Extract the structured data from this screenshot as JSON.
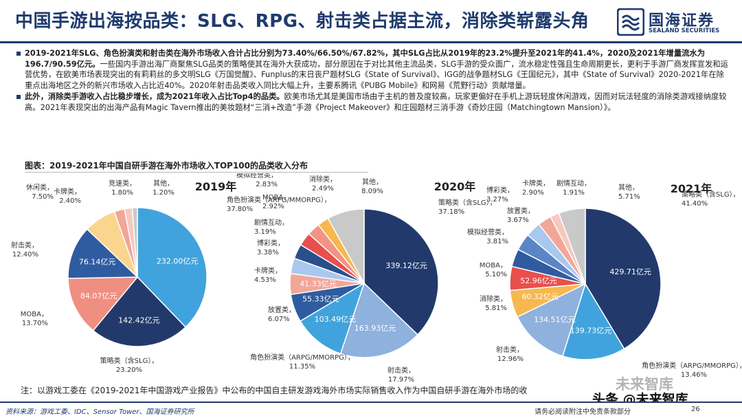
{
  "header": {
    "title": "中国手游出海按品类：SLG、RPG、射击类占据主流，消除类崭露头角",
    "logo_cn": "国海证券",
    "logo_en": "SEALAND SECURITIES"
  },
  "bullets": [
    {
      "bold": "2019-2021年SLG、角色扮演类和射击类在海外市场收入合计占比分别为73.40%/66.50%/67.82%，其中SLG占比从2019年的23.2%提升至2021年的41.4%，2020及2021年增量流水为196.7/90.59亿元。",
      "text": "一些国内手游出海厂商聚焦SLG品类的策略使其在海外大获成功，部分原因在于对比其他主流品类，SLG手游的受众面广，流水稳定性强且生命周期更长，更利于手游厂商发挥宣发和运营优势，在欧美市场表现突出的有莉莉丝的多文明SLG《万国觉醒》、Funplus的末日丧尸题材SLG《State of Survival》、IGG的战争题材SLG《王国纪元》，其中《State of Survival》2020-2021年在除重点出海地区之外的新兴市场收入占比近40%。2020年射击品类收入同比大幅上升，主要系腾讯《PUBG Mobile》和网易《荒野行动》贡献增量。"
    },
    {
      "bold": "此外，消除类手游收入占比稳步增长，成为2021年收入占比Top4的品类。",
      "text": "欧美市场尤其是美国市场由于主机的普及度较高，玩家更偏好在手机上游玩轻度休闲游戏，因而对玩法轻度的消除类游戏接纳度较高。2021年表现突出的出海产品有Magic Tavern推出的美妆题材“三消+改造”手游《Project Makeover》和庄园题材三消手游《奇妙庄园（Matchingtown Mansion）》。"
    }
  ],
  "figure_title": "图表：2019-2021年中国自研手游在海外市场收入TOP100的品类收入分布",
  "chart_data": [
    {
      "type": "pie",
      "title": "2019年",
      "slices": [
        {
          "name": "角色扮演类（ARPG/MMORPG）",
          "share": 37.8,
          "share_label": "37.80%",
          "value_label": "232.00亿元",
          "color": "#41a3dd"
        },
        {
          "name": "策略类（含SLG）",
          "share": 23.2,
          "share_label": "23.20%",
          "value_label": "142.42亿元",
          "color": "#223a6b"
        },
        {
          "name": "MOBA",
          "share": 13.7,
          "share_label": "13.70%",
          "value_label": "84.07亿元",
          "color": "#ef8f82"
        },
        {
          "name": "射击类",
          "share": 12.4,
          "share_label": "12.40%",
          "value_label": "76.14亿元",
          "color": "#2f5ca0"
        },
        {
          "name": "休闲类",
          "share": 7.5,
          "share_label": "7.50%",
          "color": "#fbd58e"
        },
        {
          "name": "卡牌类",
          "share": 2.4,
          "share_label": "2.40%",
          "color": "#f3a698"
        },
        {
          "name": "竞速类",
          "share": 1.8,
          "share_label": "1.80%",
          "color": "#f5c9bf"
        },
        {
          "name": "其他",
          "share": 1.2,
          "share_label": "1.20%",
          "color": "#c9c9c9"
        }
      ]
    },
    {
      "type": "pie",
      "title": "2020年",
      "slices": [
        {
          "name": "策略类（含SLG）",
          "share": 37.18,
          "share_label": "37.18%",
          "value_label": "339.12亿元",
          "color": "#223a6b"
        },
        {
          "name": "射击类",
          "share": 17.97,
          "share_label": "17.97%",
          "value_label": "163.93亿元",
          "color": "#8fb1de"
        },
        {
          "name": "角色扮演类（ARPG/MMORPG）",
          "share": 11.35,
          "share_label": "11.35%",
          "value_label": "103.49亿元",
          "color": "#41a3dd"
        },
        {
          "name": "放置类",
          "share": 6.07,
          "share_label": "6.07%",
          "value_label": "55.33亿元",
          "color": "#2f5ca0"
        },
        {
          "name": "卡牌类",
          "share": 4.53,
          "share_label": "4.53%",
          "value_label": "41.33亿元",
          "color": "#f3a698"
        },
        {
          "name": "博彩类",
          "share": 3.38,
          "share_label": "3.38%",
          "color": "#a9c8ef"
        },
        {
          "name": "剧情互动",
          "share": 3.19,
          "share_label": "3.19%",
          "color": "#2a4f8c"
        },
        {
          "name": "MOBA",
          "share": 2.92,
          "share_label": "2.92%",
          "color": "#e8504e"
        },
        {
          "name": "模拟经营类",
          "share": 2.83,
          "share_label": "2.83%",
          "color": "#f19483"
        },
        {
          "name": "消除类",
          "share": 2.49,
          "share_label": "2.49%",
          "color": "#f7b84f"
        },
        {
          "name": "其他",
          "share": 8.09,
          "share_label": "8.09%",
          "color": "#c9c9c9"
        }
      ]
    },
    {
      "type": "pie",
      "title": "2021年",
      "slices": [
        {
          "name": "策略类（含SLG）",
          "share": 41.4,
          "share_label": "41.40%",
          "value_label": "429.71亿元",
          "color": "#223a6b"
        },
        {
          "name": "角色扮演类（ARPG/MMORPG）",
          "share": 13.46,
          "share_label": "13.46%",
          "value_label": "139.73亿元",
          "color": "#41a3dd"
        },
        {
          "name": "射击类",
          "share": 12.96,
          "share_label": "12.96%",
          "value_label": "134.51亿元",
          "color": "#8fb1de"
        },
        {
          "name": "消除类",
          "share": 5.81,
          "share_label": "5.81%",
          "value_label": "60.32亿元",
          "color": "#f7b84f"
        },
        {
          "name": "MOBA",
          "share": 5.1,
          "share_label": "5.10%",
          "value_label": "52.96亿元",
          "color": "#e8504e"
        },
        {
          "name": "模拟经营类",
          "share": 3.81,
          "share_label": "3.81%",
          "color": "#2f5ca0"
        },
        {
          "name": "放置类",
          "share": 3.67,
          "share_label": "3.67%",
          "color": "#5b86c5"
        },
        {
          "name": "博彩类",
          "share": 3.27,
          "share_label": "3.27%",
          "color": "#a9c8ef"
        },
        {
          "name": "卡牌类",
          "share": 2.9,
          "share_label": "2.90%",
          "color": "#f3a698"
        },
        {
          "name": "剧情互动",
          "share": 1.91,
          "share_label": "1.91%",
          "color": "#f5c9bf"
        },
        {
          "name": "其他",
          "share": 5.71,
          "share_label": "5.71%",
          "color": "#c9c9c9"
        }
      ]
    }
  ],
  "note": "注：以游戏工委在《2019-2021年中国游戏产业报告》中公布的中国自主研发游戏海外市场实际销售收入作为中国自研手游在海外市场的收",
  "footer": {
    "source": "资料来源：游戏工委、IDC、Sensor Tower、国海证券研究所",
    "disclaimer": "请务必阅读附注中免责条款部分",
    "page": "26"
  },
  "watermark": {
    "line1": "未来智库",
    "line2": "头条 @未来智库"
  }
}
